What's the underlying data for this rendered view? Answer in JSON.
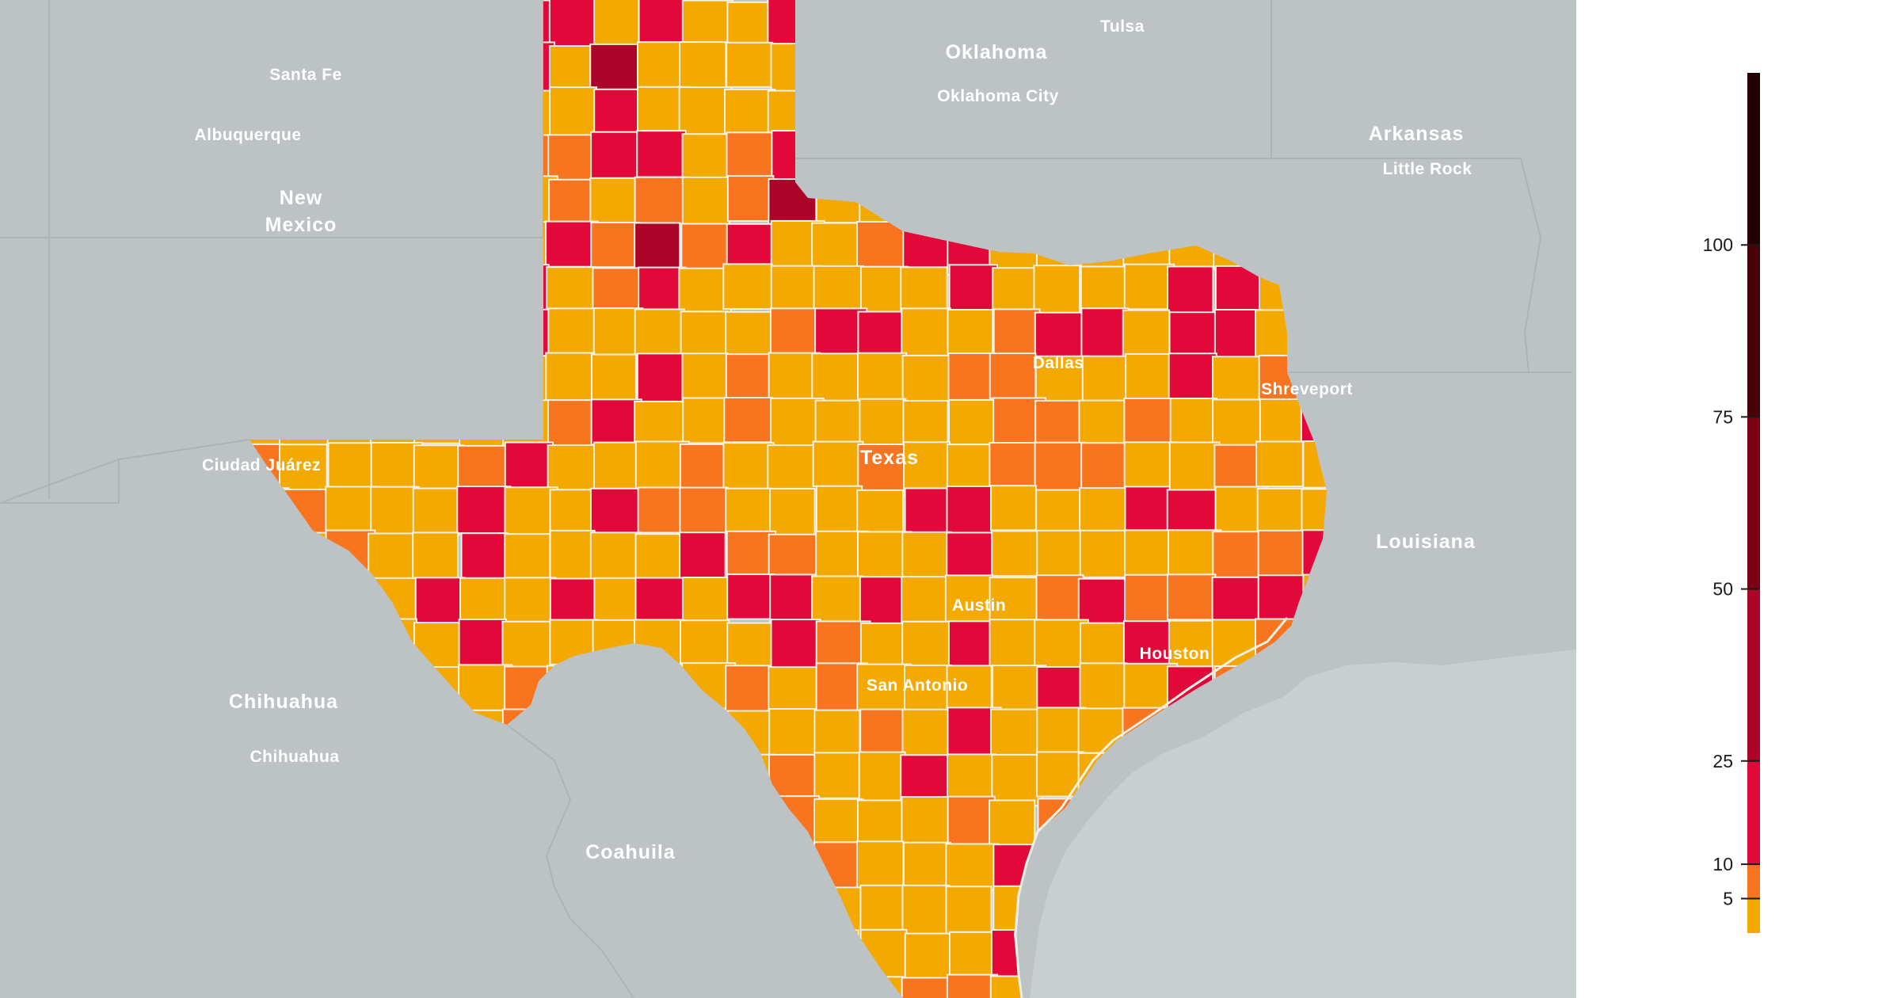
{
  "map": {
    "colors": {
      "water": "#c9cfd1",
      "land": "#bdc2c4",
      "border": "#aeb4b6",
      "county_border": "#f3f0e6"
    },
    "region_labels": [
      {
        "text": "Oklahoma",
        "kind": "state"
      },
      {
        "text": "Arkansas",
        "kind": "state"
      },
      {
        "text": "New",
        "kind": "state"
      },
      {
        "text": "Mexico",
        "kind": "state"
      },
      {
        "text": "Louisiana",
        "kind": "state"
      },
      {
        "text": "Chihuahua",
        "kind": "state"
      },
      {
        "text": "Coahuila",
        "kind": "state"
      },
      {
        "text": "Texas",
        "kind": "state"
      },
      {
        "text": "Tulsa",
        "kind": "city"
      },
      {
        "text": "Oklahoma City",
        "kind": "city"
      },
      {
        "text": "Santa Fe",
        "kind": "city"
      },
      {
        "text": "Albuquerque",
        "kind": "city"
      },
      {
        "text": "Little Rock",
        "kind": "city"
      },
      {
        "text": "Ciudad Juárez",
        "kind": "city"
      },
      {
        "text": "Dallas",
        "kind": "city"
      },
      {
        "text": "Shreveport",
        "kind": "city"
      },
      {
        "text": "Austin",
        "kind": "city"
      },
      {
        "text": "Houston",
        "kind": "city"
      },
      {
        "text": "San Antonio",
        "kind": "city"
      },
      {
        "text": "Chihuahua",
        "kind": "city"
      }
    ]
  },
  "legend": {
    "bins": [
      {
        "from": 0,
        "to": 5,
        "color": "#f4a900"
      },
      {
        "from": 5,
        "to": 10,
        "color": "#f8741e"
      },
      {
        "from": 10,
        "to": 25,
        "color": "#e2083a"
      },
      {
        "from": 25,
        "to": 50,
        "color": "#ab0428"
      },
      {
        "from": 50,
        "to": 75,
        "color": "#7a0013"
      },
      {
        "from": 75,
        "to": 100,
        "color": "#4a0008"
      },
      {
        "from": 100,
        "to": 125,
        "color": "#240004"
      }
    ],
    "ticks": [
      {
        "value": 5,
        "label": "5"
      },
      {
        "value": 10,
        "label": "10"
      },
      {
        "value": 25,
        "label": "25"
      },
      {
        "value": 50,
        "label": "50"
      },
      {
        "value": 75,
        "label": "75"
      },
      {
        "value": 100,
        "label": "100"
      }
    ]
  }
}
